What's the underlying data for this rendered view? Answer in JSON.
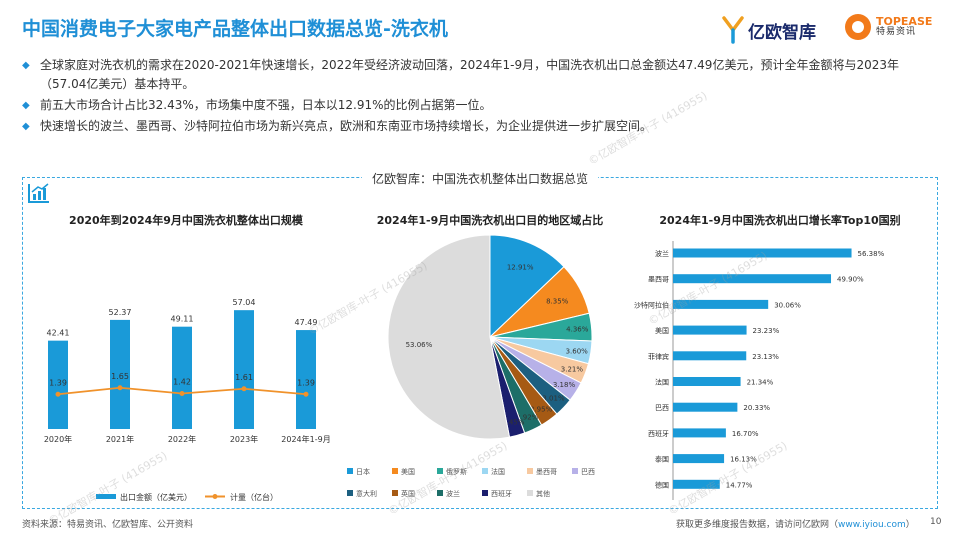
{
  "header": {
    "title": "中国消费电子大家电产品整体出口数据总览-洗衣机",
    "logo_yiou": "亿欧智库",
    "logo_topease_en": "TOPEASE",
    "logo_topease_cn": "特易资讯"
  },
  "bullets": [
    "全球家庭对洗衣机的需求在2020-2021年快速增长，2022年受经济波动回落，2024年1-9月，中国洗衣机出口总金额达47.49亿美元，预计全年金额将与2023年（57.04亿美元）基本持平。",
    "前五大市场合计占比32.43%，市场集中度不强，日本以12.91%的比例占据第一位。",
    "快速增长的波兰、墨西哥、沙特阿拉伯市场为新兴亮点，欧洲和东南亚市场持续增长，为企业提供进一步扩展空间。"
  ],
  "frame_title": "亿欧智库：中国洗衣机整体出口数据总览",
  "watermark": "©亿欧智库-叶子 (416955)",
  "footer": {
    "source": "资料来源：特易资讯、亿欧智库、公开资料",
    "more": "获取更多维度报告数据，请访问亿欧网（",
    "link": "www.iyiou.com",
    "more_end": "）",
    "page": "10"
  },
  "colors": {
    "accent": "#1f8fd6",
    "bar": "#1a9ad8",
    "line": "#f0922b"
  },
  "chart_data": [
    {
      "type": "bar",
      "title": "2020年到2024年9月中国洗衣机整体出口规模",
      "categories": [
        "2020年",
        "2021年",
        "2022年",
        "2023年",
        "2024年1-9月"
      ],
      "series": [
        {
          "name": "出口金额（亿美元）",
          "type": "bar",
          "values": [
            42.41,
            52.37,
            49.11,
            57.04,
            47.49
          ],
          "labels": [
            "42.41",
            "52.37",
            "49.11",
            "57.04",
            "47.49"
          ]
        },
        {
          "name": "计量（亿台）",
          "type": "line",
          "values": [
            1.39,
            1.65,
            1.42,
            1.61,
            1.39
          ],
          "labels": [
            "1.39",
            "1.65",
            "1.42",
            "1.61",
            "1.39"
          ]
        }
      ]
    },
    {
      "type": "pie",
      "title": "2024年1-9月中国洗衣机出口目的地区域占比",
      "slices": [
        {
          "name": "日本",
          "value": 12.91,
          "label": "12.91%",
          "color": "#1a9ad8"
        },
        {
          "name": "美国",
          "value": 8.35,
          "label": "8.35%",
          "color": "#f58a1f"
        },
        {
          "name": "俄罗斯",
          "value": 4.36,
          "label": "4.36%",
          "color": "#2aa89a"
        },
        {
          "name": "法国",
          "value": 3.6,
          "label": "3.60%",
          "color": "#9cd7f2"
        },
        {
          "name": "墨西哥",
          "value": 3.21,
          "label": "3.21%",
          "color": "#f7c9a0"
        },
        {
          "name": "巴西",
          "value": 3.18,
          "label": "3.18%",
          "color": "#b7b1e8"
        },
        {
          "name": "意大利",
          "value": 3.01,
          "label": "3.01%",
          "color": "#1c5f80"
        },
        {
          "name": "英国",
          "value": 2.95,
          "label": "2.95%",
          "color": "#a65a14"
        },
        {
          "name": "波兰",
          "value": 2.92,
          "label": "2.92%",
          "color": "#1d6e68"
        },
        {
          "name": "西班牙",
          "value": 2.45,
          "label": "2.45%",
          "color": "#1b1f6e"
        },
        {
          "name": "其他",
          "value": 53.06,
          "label": "53.06%",
          "color": "#dcdcdc"
        }
      ]
    },
    {
      "type": "bar",
      "orientation": "horizontal",
      "title": "2024年1-9月中国洗衣机出口增长率Top10国别",
      "categories": [
        "波兰",
        "墨西哥",
        "沙特阿拉伯",
        "美国",
        "菲律宾",
        "法国",
        "巴西",
        "西班牙",
        "泰国",
        "德国"
      ],
      "values": [
        56.38,
        49.9,
        30.06,
        23.23,
        23.13,
        21.34,
        20.33,
        16.7,
        16.13,
        14.77
      ],
      "labels": [
        "56.38%",
        "49.90%",
        "30.06%",
        "23.23%",
        "23.13%",
        "21.34%",
        "20.33%",
        "16.70%",
        "16.13%",
        "14.77%"
      ]
    }
  ]
}
